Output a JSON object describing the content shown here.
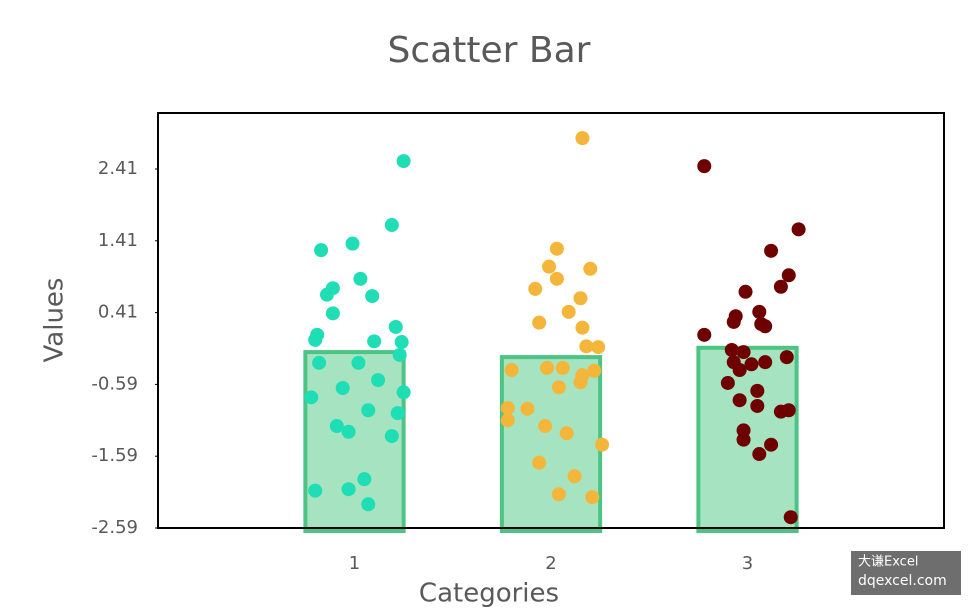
{
  "chart_data": {
    "type": "scatterbar",
    "title": "Scatter Bar",
    "x_label": "Categories",
    "y_label": "Values",
    "xlim": [
      0,
      4
    ],
    "xticks": [
      1,
      2,
      3
    ],
    "ylim": [
      -2.59,
      3.19
    ],
    "yticks": [
      -2.59,
      -1.59,
      -0.59,
      0.41,
      1.41,
      2.41
    ],
    "bars": {
      "x": [
        1,
        2,
        3
      ],
      "values": [
        -0.14,
        -0.21,
        -0.08
      ],
      "color": "#a6e3c1",
      "edge_color": "#4cc483"
    },
    "series": [
      {
        "color": "#1fddb4",
        "x": [
          1.25,
          1.19,
          0.83,
          0.99,
          1.03,
          0.89,
          0.86,
          1.09,
          0.89,
          1.21,
          0.81,
          0.8,
          1.1,
          1.24,
          1.23,
          0.82,
          1.02,
          1.12,
          0.94,
          1.25,
          0.78,
          1.07,
          1.22,
          0.91,
          0.97,
          1.19,
          1.05,
          0.97,
          0.8,
          1.07
        ],
        "values": [
          2.52,
          1.63,
          1.28,
          1.37,
          0.88,
          0.75,
          0.66,
          0.64,
          0.4,
          0.21,
          0.1,
          0.03,
          0.01,
          0.0,
          -0.18,
          -0.29,
          -0.29,
          -0.53,
          -0.64,
          -0.7,
          -0.77,
          -0.95,
          -0.99,
          -1.17,
          -1.25,
          -1.31,
          -1.91,
          -2.05,
          -2.07,
          -2.26
        ]
      },
      {
        "color": "#f4b63a",
        "x": [
          2.16,
          2.03,
          1.99,
          2.2,
          2.03,
          1.92,
          2.15,
          2.09,
          1.94,
          2.16,
          2.18,
          2.24,
          1.98,
          2.06,
          1.8,
          2.22,
          2.16,
          2.15,
          2.04,
          1.78,
          1.88,
          1.78,
          1.97,
          2.08,
          2.26,
          1.94,
          2.12,
          2.04,
          2.21
        ],
        "values": [
          2.84,
          1.3,
          1.05,
          1.02,
          0.88,
          0.74,
          0.61,
          0.42,
          0.27,
          0.2,
          -0.06,
          -0.07,
          -0.36,
          -0.36,
          -0.39,
          -0.4,
          -0.46,
          -0.56,
          -0.63,
          -0.92,
          -0.93,
          -1.09,
          -1.17,
          -1.27,
          -1.43,
          -1.68,
          -1.87,
          -2.12,
          -2.16
        ]
      },
      {
        "color": "#6e0000",
        "x": [
          2.78,
          3.26,
          3.12,
          3.21,
          3.17,
          2.99,
          3.06,
          2.94,
          2.93,
          3.07,
          3.09,
          2.78,
          2.92,
          2.98,
          3.2,
          3.09,
          2.93,
          3.02,
          2.96,
          2.9,
          3.05,
          2.96,
          3.05,
          3.21,
          3.17,
          2.98,
          2.98,
          3.12,
          3.06,
          3.22
        ],
        "values": [
          2.45,
          1.57,
          1.27,
          0.93,
          0.77,
          0.7,
          0.42,
          0.36,
          0.28,
          0.25,
          0.22,
          0.1,
          -0.11,
          -0.14,
          -0.21,
          -0.28,
          -0.28,
          -0.31,
          -0.39,
          -0.57,
          -0.68,
          -0.81,
          -0.89,
          -0.95,
          -0.97,
          -1.23,
          -1.36,
          -1.43,
          -1.56,
          -2.44
        ]
      }
    ]
  },
  "watermark": {
    "line1": "大谦Excel",
    "line2": "dqexcel.com"
  }
}
